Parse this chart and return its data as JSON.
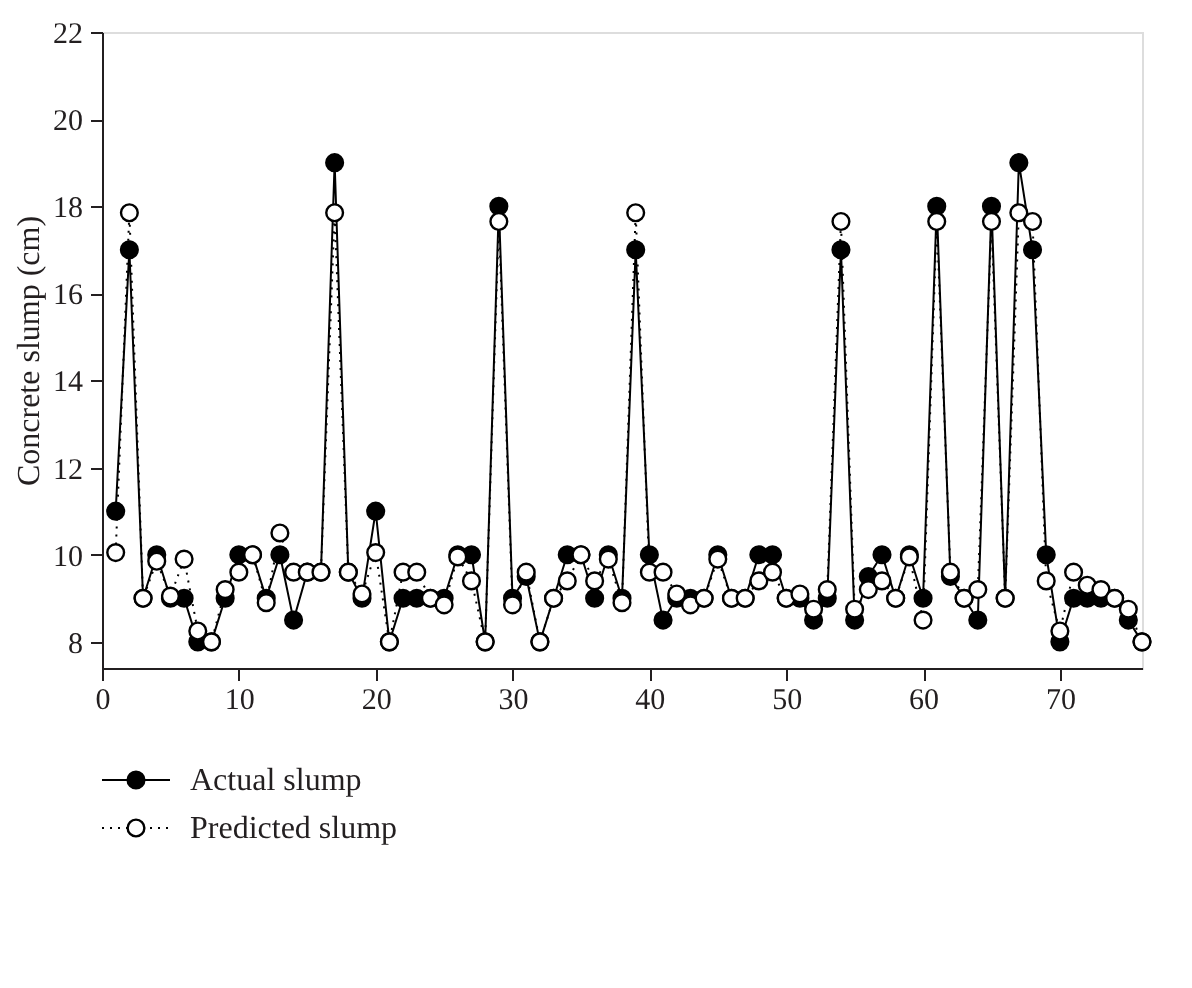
{
  "chart_data": {
    "type": "line",
    "ylabel": "Concrete slump (cm)",
    "x": [
      1,
      2,
      3,
      4,
      5,
      6,
      7,
      8,
      9,
      10,
      11,
      12,
      13,
      14,
      15,
      16,
      17,
      18,
      19,
      20,
      21,
      22,
      23,
      24,
      25,
      26,
      27,
      28,
      29,
      30,
      31,
      32,
      33,
      34,
      35,
      36,
      37,
      38,
      39,
      40,
      41,
      42,
      43,
      44,
      45,
      46,
      47,
      48,
      49,
      50,
      51,
      52,
      53,
      54,
      55,
      56,
      57,
      58,
      59,
      60,
      61,
      62,
      63,
      64,
      65,
      66,
      67,
      68,
      69,
      70,
      71,
      72,
      73,
      74,
      75,
      76
    ],
    "series": [
      {
        "name": "Actual slump",
        "color": "#000000",
        "marker": "circle",
        "line_style": "solid",
        "values": [
          11,
          17,
          9,
          10,
          9,
          9,
          8,
          8,
          9,
          10,
          10,
          9,
          10,
          8.5,
          9.6,
          9.6,
          19,
          9.6,
          9,
          11,
          8,
          9,
          9,
          9,
          9,
          10,
          10,
          8,
          18,
          9,
          9.5,
          8,
          9,
          10,
          10,
          9,
          10,
          9,
          17,
          10,
          8.5,
          9,
          9,
          9,
          10,
          9,
          9,
          10,
          10,
          9,
          9,
          8.5,
          9,
          17,
          8.5,
          9.5,
          10,
          9,
          10,
          9,
          18,
          9.5,
          9,
          8.5,
          18,
          9,
          19,
          17,
          10,
          8,
          9,
          9,
          9,
          9,
          8.5,
          8
        ]
      },
      {
        "name": "Predicted slump",
        "color": "#000000",
        "marker": "circle",
        "line_style": "dotted",
        "values": [
          10.05,
          17.85,
          9,
          9.85,
          9.05,
          9.9,
          8.25,
          8,
          9.2,
          9.6,
          10,
          8.9,
          10.5,
          9.6,
          9.6,
          9.6,
          17.85,
          9.6,
          9.1,
          10.05,
          8,
          9.6,
          9.6,
          9,
          8.85,
          9.95,
          9.4,
          8,
          17.65,
          8.85,
          9.6,
          8,
          9,
          9.4,
          10,
          9.4,
          9.9,
          8.9,
          17.85,
          9.6,
          9.6,
          9.1,
          8.85,
          9,
          9.9,
          9,
          9,
          9.4,
          9.6,
          9,
          9.1,
          8.75,
          9.2,
          17.65,
          8.75,
          9.2,
          9.4,
          9,
          9.95,
          8.5,
          17.65,
          9.6,
          9,
          9.2,
          17.65,
          9,
          17.85,
          17.65,
          9.4,
          8.25,
          9.6,
          9.3,
          9.2,
          9,
          8.75,
          8
        ]
      }
    ],
    "xlim": [
      0,
      76
    ],
    "xticks": [
      0,
      10,
      20,
      30,
      40,
      50,
      60,
      70
    ],
    "ylim": [
      7.4,
      22
    ],
    "yticks": [
      8,
      10,
      12,
      14,
      16,
      18,
      20,
      22
    ],
    "grid": false,
    "legend": "bottom left"
  }
}
